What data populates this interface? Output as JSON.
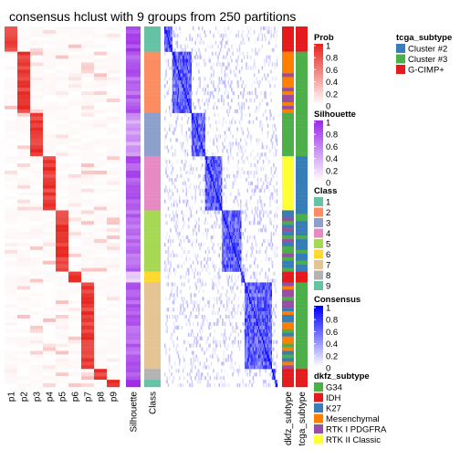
{
  "chart_data": {
    "type": "heatmap",
    "title": "consensus hclust with 9 groups from 250 partitions",
    "prob_columns": [
      "p1",
      "p2",
      "p3",
      "p4",
      "p5",
      "p6",
      "p7",
      "p8",
      "p9"
    ],
    "annotation_columns": [
      "Silhouette",
      "Class"
    ],
    "right_annotation_columns": [
      "dkfz_subtype",
      "tcga_subtype"
    ],
    "n_samples": 100,
    "group_sizes": [
      7,
      17,
      12,
      15,
      17,
      3,
      24,
      3,
      2
    ],
    "group_silhouette": [
      0.85,
      0.75,
      0.45,
      0.8,
      0.7,
      0.2,
      0.75,
      0.8,
      0.9
    ],
    "legends": [
      {
        "title": "Prob",
        "type": "gradient",
        "ticks": [
          "1",
          "0.8",
          "0.6",
          "0.4",
          "0.2",
          "0"
        ],
        "color_low": "#ffffff",
        "color_high": "#e8251f"
      },
      {
        "title": "Silhouette",
        "type": "gradient",
        "ticks": [
          "1",
          "0.8",
          "0.6",
          "0.4",
          "0.2",
          "0"
        ],
        "color_low": "#ffffff",
        "color_high": "#9d2be8"
      },
      {
        "title": "Class",
        "type": "discrete",
        "labels": [
          "1",
          "2",
          "3",
          "4",
          "5",
          "6",
          "7",
          "8",
          "9"
        ],
        "colors": [
          "#66c2a5",
          "#fc8d62",
          "#8da0cb",
          "#e78ac3",
          "#a6d854",
          "#ffd92f",
          "#e5c494",
          "#b3b3b3",
          "#66c2a5"
        ]
      },
      {
        "title": "Consensus",
        "type": "gradient",
        "ticks": [
          "1",
          "0.8",
          "0.6",
          "0.4",
          "0.2",
          "0"
        ],
        "color_low": "#ffffff",
        "color_high": "#0000ff"
      },
      {
        "title": "tcga_subtype",
        "type": "discrete",
        "labels": [
          "Cluster #2",
          "Cluster #3",
          "G-CIMP+"
        ],
        "colors": [
          "#377eb8",
          "#4daf4a",
          "#e41a1c"
        ]
      },
      {
        "title": "dkfz_subtype",
        "type": "discrete",
        "labels": [
          "G34",
          "IDH",
          "K27",
          "Mesenchymal",
          "RTK I PDGFRA",
          "RTK II Classic"
        ],
        "colors": [
          "#4daf4a",
          "#e41a1c",
          "#377eb8",
          "#ff7f00",
          "#984ea3",
          "#ffff33"
        ]
      }
    ]
  }
}
